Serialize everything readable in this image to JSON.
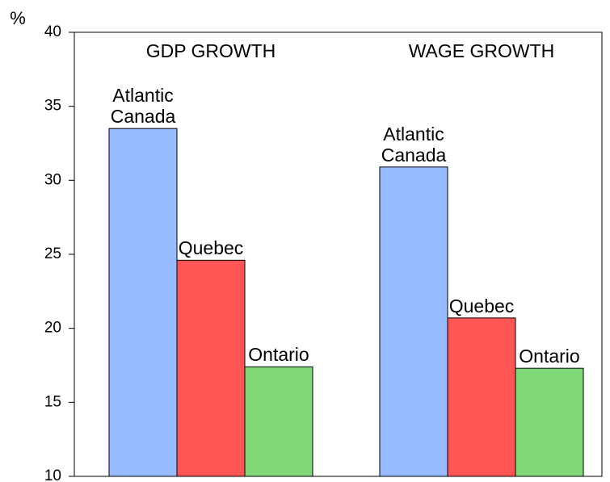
{
  "chart_data": {
    "type": "bar",
    "y_label": "%",
    "categories": [
      "GDP GROWTH",
      "WAGE GROWTH"
    ],
    "series": [
      {
        "name": "Atlantic Canada",
        "color": "#99bbff",
        "values": [
          33.5,
          30.9
        ]
      },
      {
        "name": "Quebec",
        "color": "#ff5555",
        "values": [
          24.6,
          20.7
        ]
      },
      {
        "name": "Ontario",
        "color": "#80d878",
        "values": [
          17.4,
          17.3
        ]
      }
    ],
    "ylim": [
      10,
      40
    ],
    "yticks": [
      10,
      15,
      20,
      25,
      30,
      35,
      40
    ],
    "grid": false
  }
}
